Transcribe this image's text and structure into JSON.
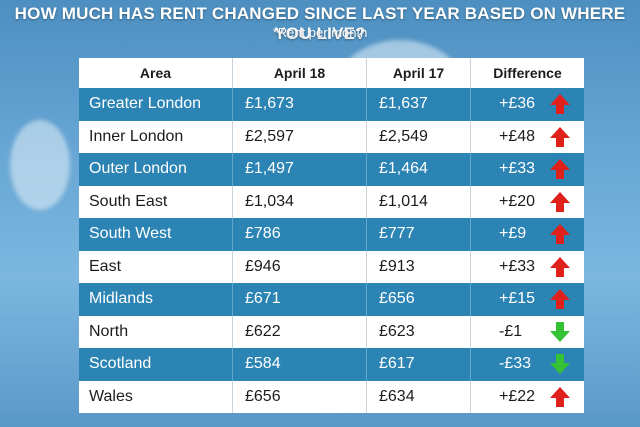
{
  "title": "HOW MUCH HAS RENT CHANGED SINCE LAST YEAR BASED ON WHERE YOU LIVE?",
  "subtitle": "*Rent per month",
  "colors": {
    "row_blue": "#2b84b3",
    "row_white": "#ffffff",
    "arrow_up": "#e0201b",
    "arrow_down": "#33c233"
  },
  "chart_data": {
    "type": "table",
    "title": "HOW MUCH HAS RENT CHANGED SINCE LAST YEAR BASED ON WHERE YOU LIVE?",
    "subtitle": "*Rent per month",
    "columns": [
      "Area",
      "April 18",
      "April 17",
      "Difference"
    ],
    "rows": [
      {
        "area": "Greater London",
        "april18": "£1,673",
        "april17": "£1,637",
        "difference": "+£36",
        "direction": "up"
      },
      {
        "area": "Inner London",
        "april18": "£2,597",
        "april17": "£2,549",
        "difference": "+£48",
        "direction": "up"
      },
      {
        "area": "Outer London",
        "april18": "£1,497",
        "april17": "£1,464",
        "difference": "+£33",
        "direction": "up"
      },
      {
        "area": "South East",
        "april18": "£1,034",
        "april17": "£1,014",
        "difference": "+£20",
        "direction": "up"
      },
      {
        "area": "South West",
        "april18": "£786",
        "april17": "£777",
        "difference": "+£9",
        "direction": "up"
      },
      {
        "area": "East",
        "april18": "£946",
        "april17": "£913",
        "difference": "+£33",
        "direction": "up"
      },
      {
        "area": "Midlands",
        "april18": "£671",
        "april17": "£656",
        "difference": "+£15",
        "direction": "up"
      },
      {
        "area": "North",
        "april18": "£622",
        "april17": "£623",
        "difference": "-£1",
        "direction": "down"
      },
      {
        "area": "Scotland",
        "april18": "£584",
        "april17": "£617",
        "difference": "-£33",
        "direction": "down"
      },
      {
        "area": "Wales",
        "april18": "£656",
        "april17": "£634",
        "difference": "+£22",
        "direction": "up"
      }
    ]
  }
}
